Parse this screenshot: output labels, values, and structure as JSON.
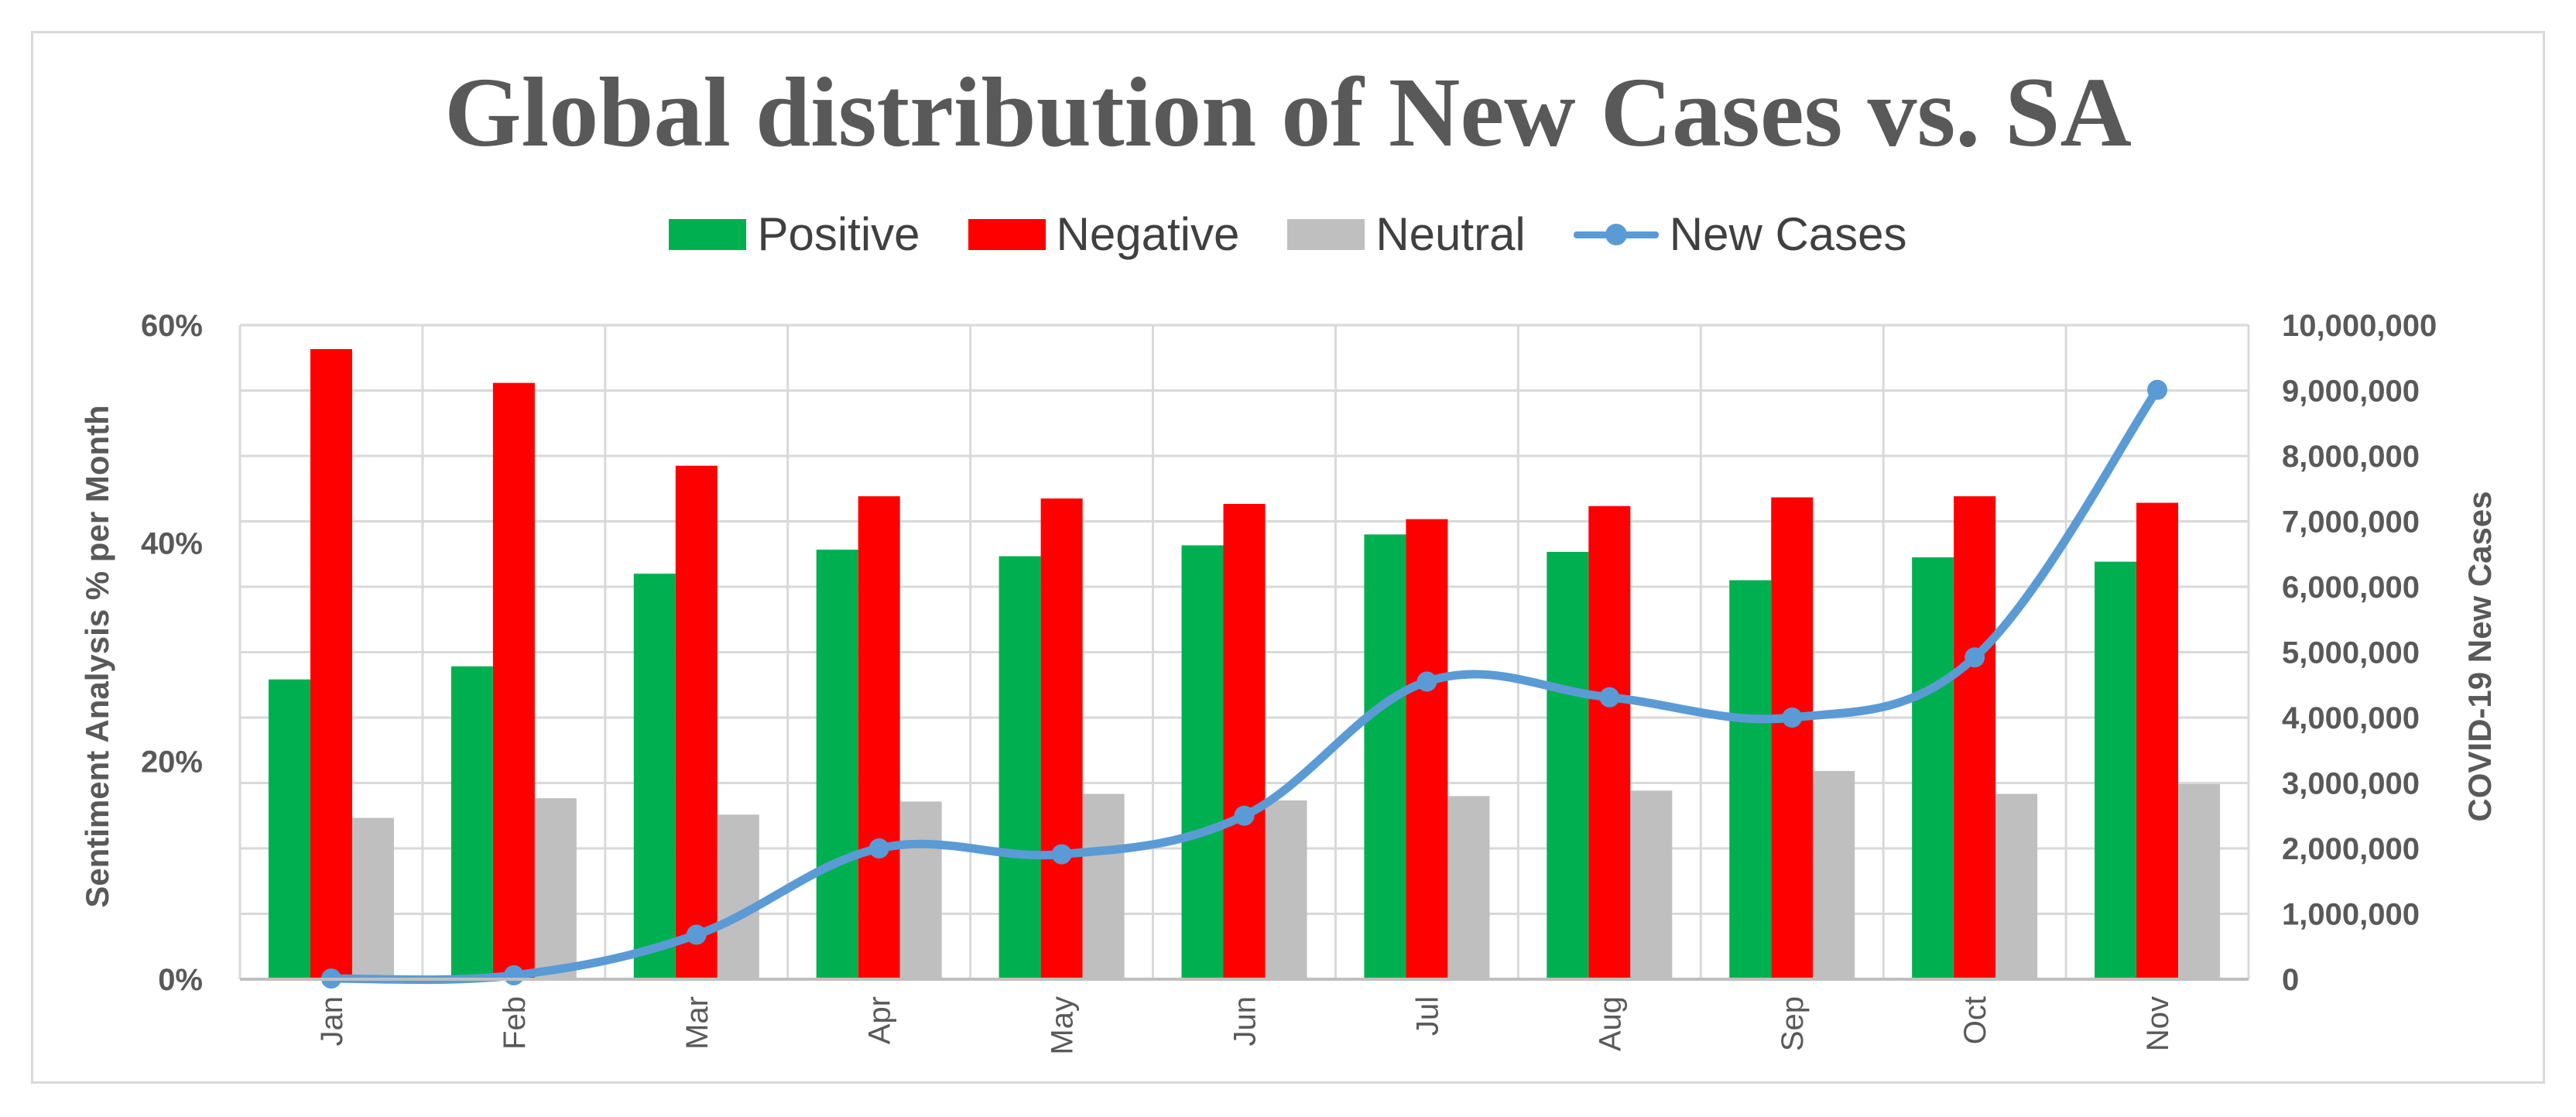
{
  "chart_data": {
    "type": "bar+line",
    "title": "Global distribution of New Cases vs. SA",
    "categories": [
      "Jan",
      "Feb",
      "Mar",
      "Apr",
      "May",
      "Jun",
      "Jul",
      "Aug",
      "Sep",
      "Oct",
      "Nov"
    ],
    "series": [
      {
        "name": "Positive",
        "type": "bar",
        "axis": "left",
        "color": "#00b050",
        "values": [
          27.5,
          28.7,
          37.2,
          39.4,
          38.8,
          39.8,
          40.8,
          39.2,
          36.6,
          38.7,
          38.3
        ]
      },
      {
        "name": "Negative",
        "type": "bar",
        "axis": "left",
        "color": "#ff0000",
        "values": [
          57.8,
          54.7,
          47.1,
          44.3,
          44.1,
          43.6,
          42.2,
          43.4,
          44.2,
          44.3,
          43.7
        ]
      },
      {
        "name": "Neutral",
        "type": "bar",
        "axis": "left",
        "color": "#bfbfbf",
        "values": [
          14.8,
          16.6,
          15.1,
          16.3,
          17.0,
          16.4,
          16.8,
          17.3,
          19.1,
          17.0,
          17.9
        ]
      },
      {
        "name": "New Cases",
        "type": "line",
        "axis": "right",
        "color": "#5b9bd5",
        "smooth": true,
        "values": [
          10000,
          60000,
          680000,
          2000000,
          1910000,
          2500000,
          4550000,
          4310000,
          4000000,
          4920000,
          9010000
        ]
      }
    ],
    "ylabel": "Sentiment Analysis % per Month",
    "ylabel_right": "COVID-19 New Cases",
    "ylim": [
      0,
      60
    ],
    "ylim_right": [
      0,
      10000000
    ],
    "yticks": [
      "0%",
      "20%",
      "40%",
      "60%"
    ],
    "yticks_right": [
      "0",
      "1,000,000",
      "2,000,000",
      "3,000,000",
      "4,000,000",
      "5,000,000",
      "6,000,000",
      "7,000,000",
      "8,000,000",
      "9,000,000",
      "10,000,000"
    ],
    "legend_position": "top-center",
    "grid": true
  }
}
